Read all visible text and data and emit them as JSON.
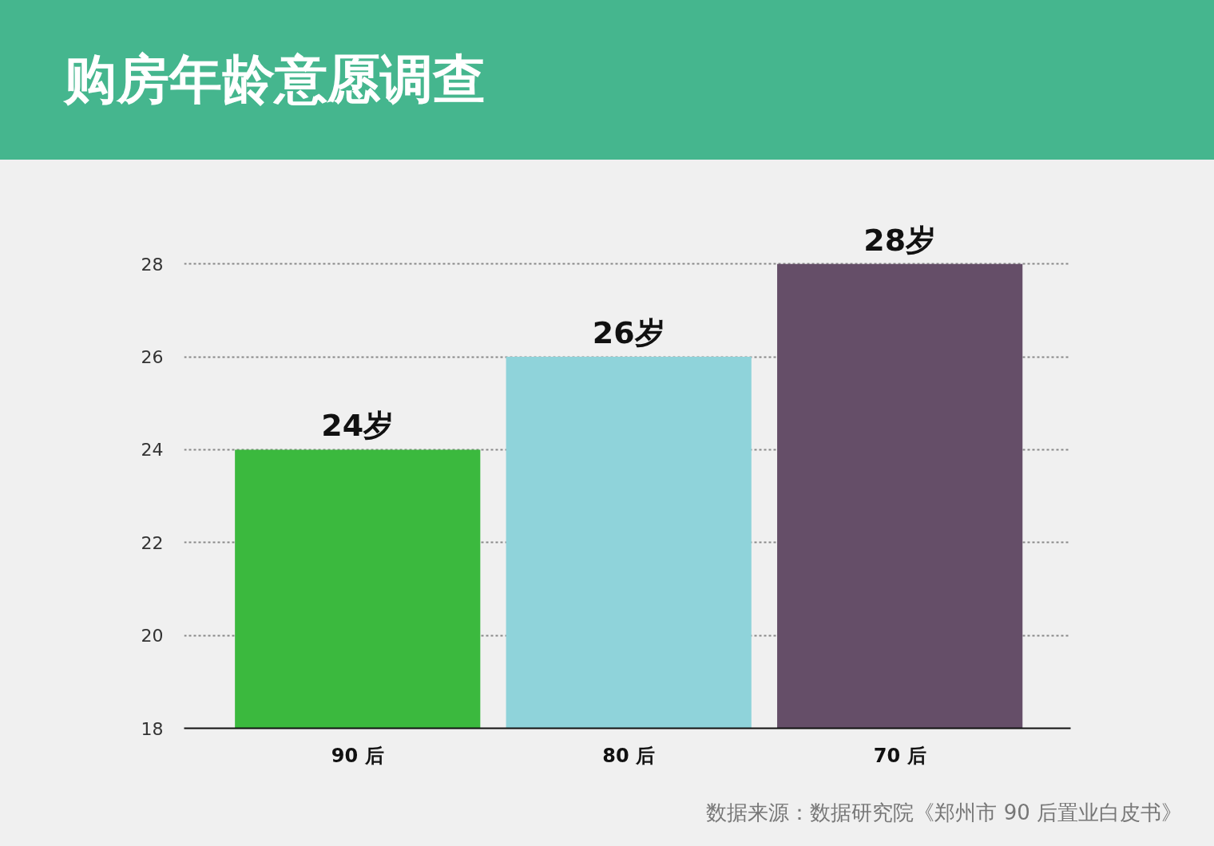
{
  "chart_data": {
    "type": "bar",
    "title": "购房年龄意愿调查",
    "categories": [
      "90 后",
      "80 后",
      "70 后"
    ],
    "values": [
      24,
      26,
      28
    ],
    "colors": [
      "#3bb93e",
      "#8fd3da",
      "#654e68"
    ],
    "value_labels": [
      "24岁",
      "26岁",
      "28岁"
    ],
    "ylim": [
      18,
      28
    ],
    "yticks": [
      18,
      20,
      22,
      24,
      26,
      28
    ],
    "grid": "y",
    "annotations": [
      "数据来源：数据研究院《郑州市 90 后置业白皮书》"
    ]
  }
}
